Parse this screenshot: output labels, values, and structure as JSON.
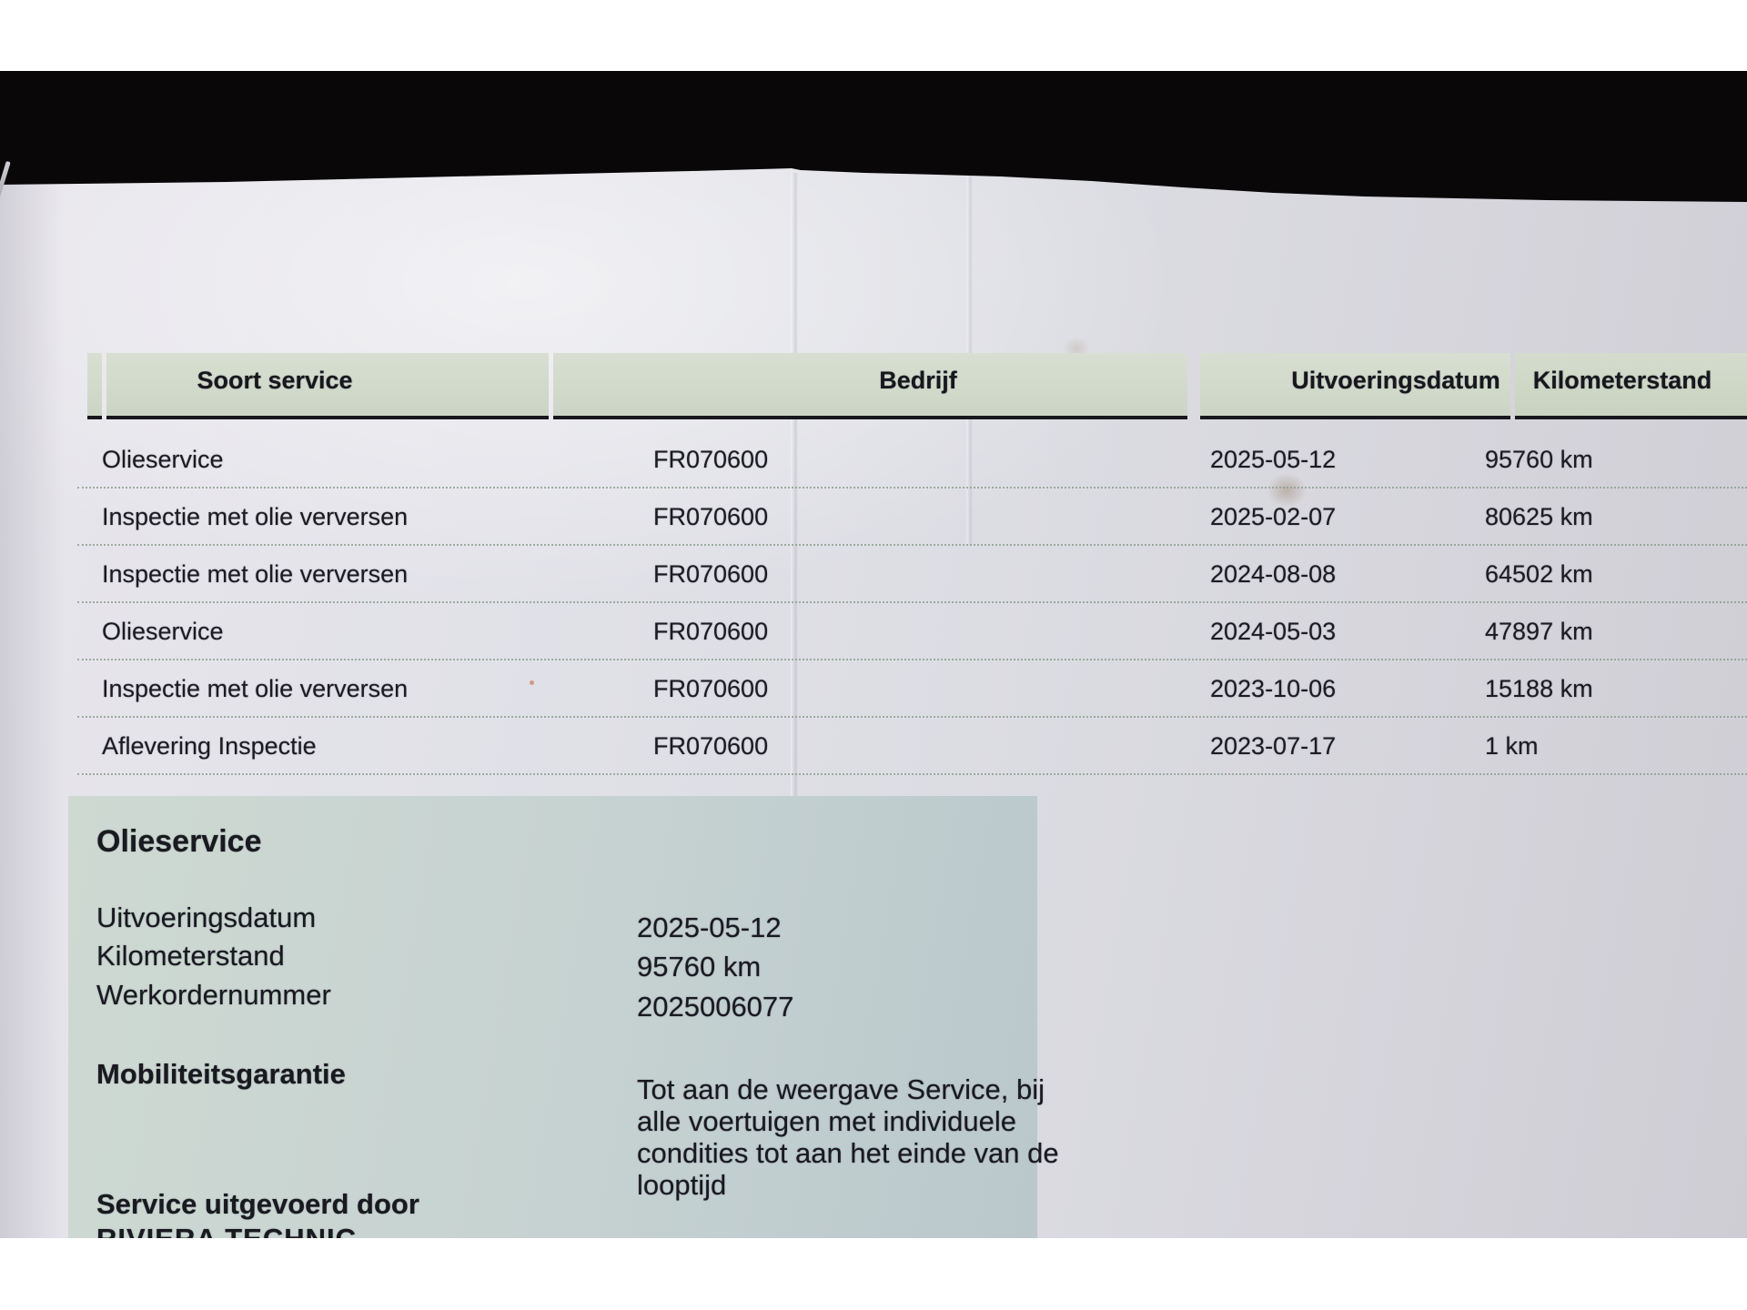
{
  "table": {
    "columns": [
      "Soort service",
      "Bedrijf",
      "Uitvoeringsdatum",
      "Kilometerstand"
    ],
    "rows": [
      {
        "soort": "Olieservice",
        "bedrijf": "FR070600",
        "datum": "2025-05-12",
        "km": "95760 km"
      },
      {
        "soort": "Inspectie met olie verversen",
        "bedrijf": "FR070600",
        "datum": "2025-02-07",
        "km": "80625 km"
      },
      {
        "soort": "Inspectie met olie verversen",
        "bedrijf": "FR070600",
        "datum": "2024-08-08",
        "km": "64502 km"
      },
      {
        "soort": "Olieservice",
        "bedrijf": "FR070600",
        "datum": "2024-05-03",
        "km": "47897 km"
      },
      {
        "soort": "Inspectie met olie verversen",
        "bedrijf": "FR070600",
        "datum": "2023-10-06",
        "km": "15188 km"
      },
      {
        "soort": "Aflevering Inspectie",
        "bedrijf": "FR070600",
        "datum": "2023-07-17",
        "km": "1 km"
      }
    ]
  },
  "detail": {
    "title": "Olieservice",
    "fields": [
      {
        "label": "Uitvoeringsdatum",
        "value": "2025-05-12"
      },
      {
        "label": "Kilometerstand",
        "value": "95760 km"
      },
      {
        "label": "Werkordernummer",
        "value": "2025006077"
      }
    ],
    "garantie_label": "Mobiliteitsgarantie",
    "garantie_text": "Tot aan de weergave Service, bij alle voertuigen met individuele condities tot aan het einde van de looptijd",
    "performed_by_label": "Service uitgevoerd door",
    "performed_by_value": "RIVIERA TECHNIC"
  },
  "colors": {
    "header_green": "#d2dacb",
    "detail_panel_green": "#c6d2d1",
    "paper": "#dddee4",
    "top_band_black": "#0a0709",
    "dotted_line": "#869a86"
  }
}
